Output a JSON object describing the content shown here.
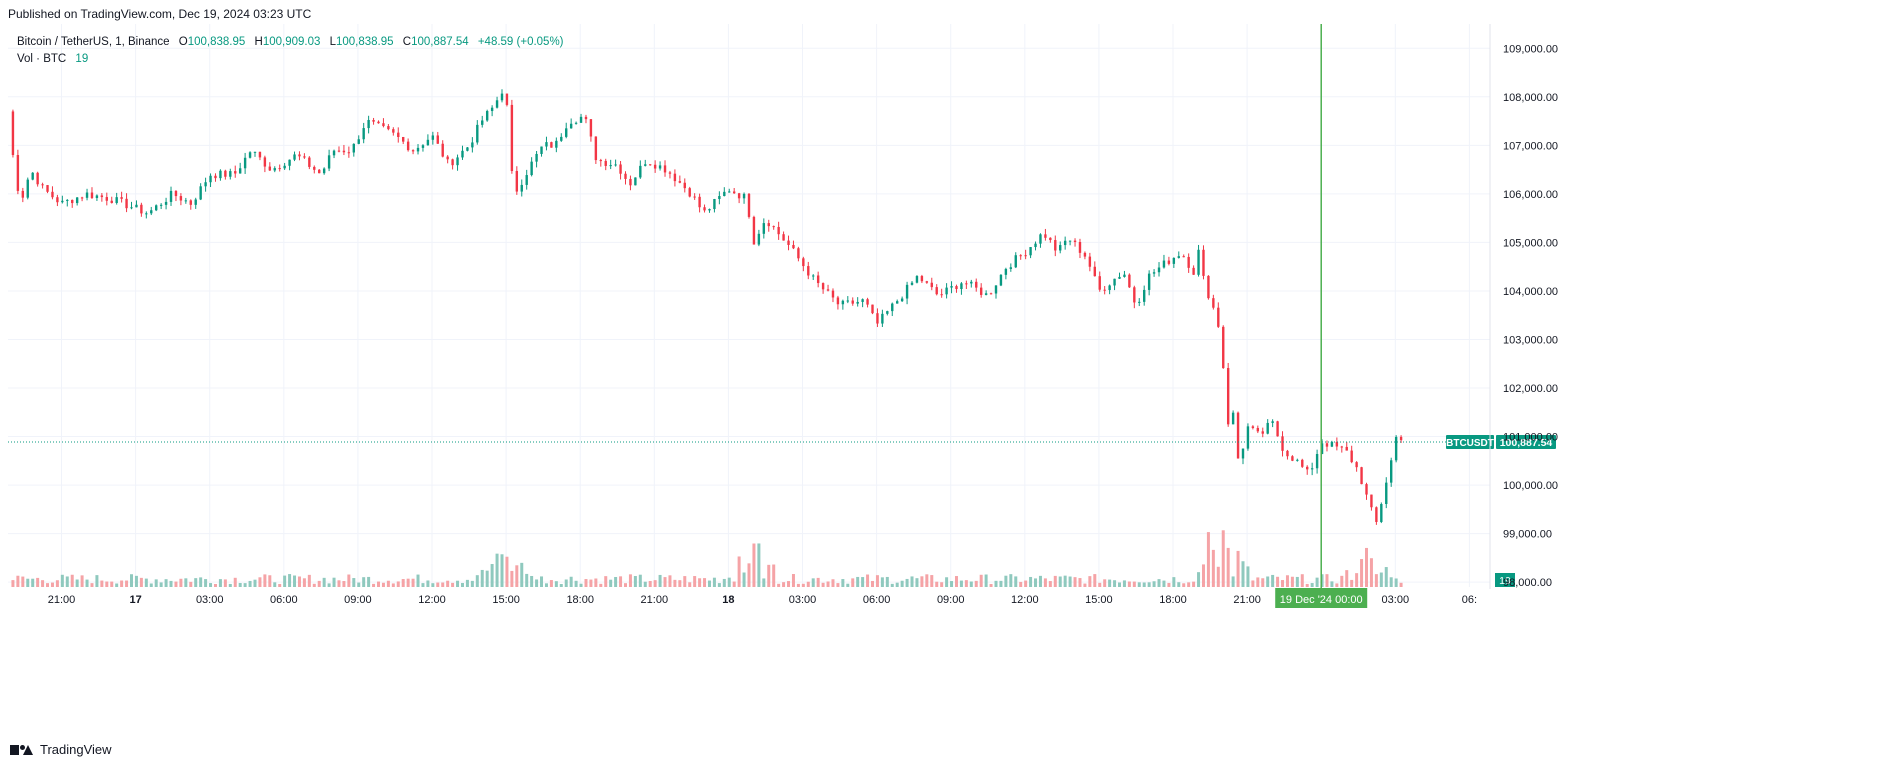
{
  "header": {
    "published": "Published on TradingView.com, Dec 19, 2024 03:23 UTC"
  },
  "legend": {
    "symbol": "Bitcoin / TetherUS, 1, Binance",
    "open_key": "O",
    "open": "100,838.95",
    "high_key": "H",
    "high": "100,909.03",
    "low_key": "L",
    "low": "100,838.95",
    "close_key": "C",
    "close": "100,887.54",
    "change": "+48.59 (+0.05%)",
    "volume_label": "Vol · BTC",
    "volume_value": "19"
  },
  "footer": {
    "brand": "TradingView"
  },
  "colors": {
    "up": "#089981",
    "down": "#f23645",
    "up_volume": "#8fc9be",
    "down_volume": "#f5a3a6",
    "grid": "#f0f3fa",
    "price_line": "#089981",
    "cursor_line": "#4caf50"
  },
  "chart_data": {
    "type": "line",
    "title": "Bitcoin / TetherUS, 1, Binance",
    "interval": "1 minute",
    "exchange": "Binance",
    "series": [
      {
        "name": "BTCUSDT",
        "points": [
          {
            "t": "Dec 16 18:50",
            "price": 107700
          },
          {
            "t": "Dec 16 19:00",
            "price": 106900
          },
          {
            "t": "Dec 16 19:20",
            "price": 105800
          },
          {
            "t": "Dec 16 19:45",
            "price": 106500
          },
          {
            "t": "Dec 16 20:15",
            "price": 106100
          },
          {
            "t": "Dec 16 21:00",
            "price": 105800
          },
          {
            "t": "Dec 16 22:00",
            "price": 106000
          },
          {
            "t": "Dec 16 23:00",
            "price": 105900
          },
          {
            "t": "Dec 17 00:30",
            "price": 105600
          },
          {
            "t": "Dec 17 01:30",
            "price": 106000
          },
          {
            "t": "Dec 17 02:15",
            "price": 105800
          },
          {
            "t": "Dec 17 03:00",
            "price": 106400
          },
          {
            "t": "Dec 17 04:00",
            "price": 106400
          },
          {
            "t": "Dec 17 04:40",
            "price": 106900
          },
          {
            "t": "Dec 17 05:30",
            "price": 106500
          },
          {
            "t": "Dec 17 06:30",
            "price": 106800
          },
          {
            "t": "Dec 17 07:30",
            "price": 106400
          },
          {
            "t": "Dec 17 08:00",
            "price": 106900
          },
          {
            "t": "Dec 17 08:45",
            "price": 106900
          },
          {
            "t": "Dec 17 09:20",
            "price": 107500
          },
          {
            "t": "Dec 17 10:30",
            "price": 107200
          },
          {
            "t": "Dec 17 11:15",
            "price": 106900
          },
          {
            "t": "Dec 17 12:00",
            "price": 107200
          },
          {
            "t": "Dec 17 12:40",
            "price": 106600
          },
          {
            "t": "Dec 17 13:30",
            "price": 107000
          },
          {
            "t": "Dec 17 14:00",
            "price": 107500
          },
          {
            "t": "Dec 17 14:30",
            "price": 107800
          },
          {
            "t": "Dec 17 15:00",
            "price": 108300
          },
          {
            "t": "Dec 17 15:05",
            "price": 107000
          },
          {
            "t": "Dec 17 15:20",
            "price": 106000
          },
          {
            "t": "Dec 17 15:40",
            "price": 106300
          },
          {
            "t": "Dec 17 16:00",
            "price": 106600
          },
          {
            "t": "Dec 17 16:30",
            "price": 107000
          },
          {
            "t": "Dec 17 17:00",
            "price": 107000
          },
          {
            "t": "Dec 17 17:30",
            "price": 107500
          },
          {
            "t": "Dec 17 18:10",
            "price": 107600
          },
          {
            "t": "Dec 17 18:40",
            "price": 106700
          },
          {
            "t": "Dec 17 19:30",
            "price": 106600
          },
          {
            "t": "Dec 17 20:00",
            "price": 106200
          },
          {
            "t": "Dec 17 20:40",
            "price": 106700
          },
          {
            "t": "Dec 17 21:30",
            "price": 106500
          },
          {
            "t": "Dec 17 22:30",
            "price": 106000
          },
          {
            "t": "Dec 17 23:00",
            "price": 105600
          },
          {
            "t": "Dec 18 00:00",
            "price": 106100
          },
          {
            "t": "Dec 18 00:45",
            "price": 105900
          },
          {
            "t": "Dec 18 01:00",
            "price": 105000
          },
          {
            "t": "Dec 18 01:30",
            "price": 105500
          },
          {
            "t": "Dec 18 02:30",
            "price": 104900
          },
          {
            "t": "Dec 18 03:30",
            "price": 104200
          },
          {
            "t": "Dec 18 04:30",
            "price": 103700
          },
          {
            "t": "Dec 18 05:30",
            "price": 103800
          },
          {
            "t": "Dec 18 06:00",
            "price": 103300
          },
          {
            "t": "Dec 18 06:30",
            "price": 103600
          },
          {
            "t": "Dec 18 07:00",
            "price": 103900
          },
          {
            "t": "Dec 18 07:40",
            "price": 104300
          },
          {
            "t": "Dec 18 08:30",
            "price": 103900
          },
          {
            "t": "Dec 18 09:30",
            "price": 104200
          },
          {
            "t": "Dec 18 10:30",
            "price": 103900
          },
          {
            "t": "Dec 18 11:15",
            "price": 104500
          },
          {
            "t": "Dec 18 12:00",
            "price": 104800
          },
          {
            "t": "Dec 18 12:45",
            "price": 105200
          },
          {
            "t": "Dec 18 13:20",
            "price": 104800
          },
          {
            "t": "Dec 18 13:45",
            "price": 105100
          },
          {
            "t": "Dec 18 14:30",
            "price": 104700
          },
          {
            "t": "Dec 18 15:00",
            "price": 104000
          },
          {
            "t": "Dec 18 15:30",
            "price": 104200
          },
          {
            "t": "Dec 18 16:00",
            "price": 104400
          },
          {
            "t": "Dec 18 16:30",
            "price": 103700
          },
          {
            "t": "Dec 18 17:00",
            "price": 104300
          },
          {
            "t": "Dec 18 17:45",
            "price": 104600
          },
          {
            "t": "Dec 18 18:20",
            "price": 104800
          },
          {
            "t": "Dec 18 18:50",
            "price": 104400
          },
          {
            "t": "Dec 18 19:00",
            "price": 104900
          },
          {
            "t": "Dec 18 19:15",
            "price": 104200
          },
          {
            "t": "Dec 18 19:40",
            "price": 103600
          },
          {
            "t": "Dec 18 20:00",
            "price": 103000
          },
          {
            "t": "Dec 18 20:05",
            "price": 101600
          },
          {
            "t": "Dec 18 20:10",
            "price": 100900
          },
          {
            "t": "Dec 18 20:20",
            "price": 101900
          },
          {
            "t": "Dec 18 20:40",
            "price": 100400
          },
          {
            "t": "Dec 18 21:00",
            "price": 101200
          },
          {
            "t": "Dec 18 21:30",
            "price": 101000
          },
          {
            "t": "Dec 18 22:00",
            "price": 101300
          },
          {
            "t": "Dec 18 22:30",
            "price": 100700
          },
          {
            "t": "Dec 18 23:00",
            "price": 100500
          },
          {
            "t": "Dec 18 23:30",
            "price": 100200
          },
          {
            "t": "Dec 19 00:00",
            "price": 100900
          },
          {
            "t": "Dec 19 00:30",
            "price": 100800
          },
          {
            "t": "Dec 19 01:00",
            "price": 100700
          },
          {
            "t": "Dec 19 01:30",
            "price": 100300
          },
          {
            "t": "Dec 19 02:00",
            "price": 99500
          },
          {
            "t": "Dec 19 02:15",
            "price": 99200
          },
          {
            "t": "Dec 19 02:30",
            "price": 99800
          },
          {
            "t": "Dec 19 02:50",
            "price": 100500
          },
          {
            "t": "Dec 19 03:05",
            "price": 101100
          },
          {
            "t": "Dec 19 03:23",
            "price": 100887.54
          }
        ]
      }
    ],
    "y_axis": {
      "ticks": [
        "109,000.00",
        "108,000.00",
        "107,000.00",
        "106,000.00",
        "105,000.00",
        "104,000.00",
        "103,000.00",
        "102,000.00",
        "101,000.00",
        "100,000.00",
        "99,000.00",
        "98,000.00"
      ],
      "range": [
        97900,
        109500
      ]
    },
    "x_axis": {
      "ticks": [
        {
          "label": "21:00",
          "bold": false
        },
        {
          "label": "17",
          "bold": true
        },
        {
          "label": "03:00",
          "bold": false
        },
        {
          "label": "06:00",
          "bold": false
        },
        {
          "label": "09:00",
          "bold": false
        },
        {
          "label": "12:00",
          "bold": false
        },
        {
          "label": "15:00",
          "bold": false
        },
        {
          "label": "18:00",
          "bold": false
        },
        {
          "label": "21:00",
          "bold": false
        },
        {
          "label": "18",
          "bold": true
        },
        {
          "label": "03:00",
          "bold": false
        },
        {
          "label": "06:00",
          "bold": false
        },
        {
          "label": "09:00",
          "bold": false
        },
        {
          "label": "12:00",
          "bold": false
        },
        {
          "label": "15:00",
          "bold": false
        },
        {
          "label": "18:00",
          "bold": false
        },
        {
          "label": "21:00",
          "bold": false
        },
        {
          "label": "03:00",
          "bold": false
        },
        {
          "label": "06:",
          "bold": false
        }
      ]
    },
    "last_price": {
      "symbol": "BTCUSDT",
      "value": "100,887.54"
    },
    "volume_badge": "19",
    "cursor_label": {
      "date": "19 Dec '24",
      "time": "00:00"
    },
    "volume_spikes": [
      {
        "t": "Dec 17 15:00",
        "relative": 0.95
      },
      {
        "t": "Dec 18 01:00",
        "relative": 1.0
      },
      {
        "t": "Dec 18 20:00",
        "relative": 1.6
      },
      {
        "t": "Dec 19 02:00",
        "relative": 0.75
      }
    ],
    "grid": true
  }
}
